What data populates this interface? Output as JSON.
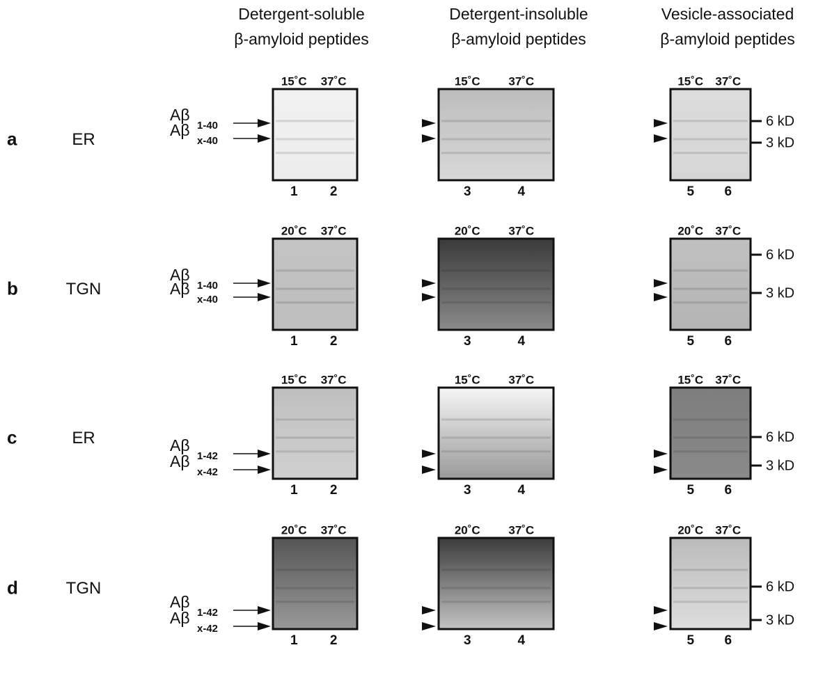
{
  "columns": [
    {
      "line1": "Detergent-soluble",
      "line2": "β-amyloid peptides"
    },
    {
      "line1": "Detergent-insoluble",
      "line2": "β-amyloid peptides"
    },
    {
      "line1": "Vesicle-associated",
      "line2": "β-amyloid peptides"
    }
  ],
  "rows": [
    {
      "letter": "a",
      "compartment": "ER",
      "peptides": [
        {
          "base": "Aβ",
          "sub": "1-40"
        },
        {
          "base": "Aβ",
          "sub": "x-40"
        }
      ],
      "panels": [
        {
          "temps": [
            "15˚C",
            "37˚C"
          ],
          "lanes": [
            "1",
            "2"
          ]
        },
        {
          "temps": [
            "15˚C",
            "37˚C"
          ],
          "lanes": [
            "3",
            "4"
          ]
        },
        {
          "temps": [
            "15˚C",
            "37˚C"
          ],
          "lanes": [
            "5",
            "6"
          ]
        }
      ],
      "markers": [
        "6 kD",
        "3 kD"
      ]
    },
    {
      "letter": "b",
      "compartment": "TGN",
      "peptides": [
        {
          "base": "Aβ",
          "sub": "1-40"
        },
        {
          "base": "Aβ",
          "sub": "x-40"
        }
      ],
      "panels": [
        {
          "temps": [
            "20˚C",
            "37˚C"
          ],
          "lanes": [
            "1",
            "2"
          ]
        },
        {
          "temps": [
            "20˚C",
            "37˚C"
          ],
          "lanes": [
            "3",
            "4"
          ]
        },
        {
          "temps": [
            "20˚C",
            "37˚C"
          ],
          "lanes": [
            "5",
            "6"
          ]
        }
      ],
      "markers": [
        "6 kD",
        "3 kD"
      ]
    },
    {
      "letter": "c",
      "compartment": "ER",
      "peptides": [
        {
          "base": "Aβ",
          "sub": "1-42"
        },
        {
          "base": "Aβ",
          "sub": "x-42"
        }
      ],
      "panels": [
        {
          "temps": [
            "15˚C",
            "37˚C"
          ],
          "lanes": [
            "1",
            "2"
          ]
        },
        {
          "temps": [
            "15˚C",
            "37˚C"
          ],
          "lanes": [
            "3",
            "4"
          ]
        },
        {
          "temps": [
            "15˚C",
            "37˚C"
          ],
          "lanes": [
            "5",
            "6"
          ]
        }
      ],
      "markers": [
        "6 kD",
        "3 kD"
      ]
    },
    {
      "letter": "d",
      "compartment": "TGN",
      "peptides": [
        {
          "base": "Aβ",
          "sub": "1-42"
        },
        {
          "base": "Aβ",
          "sub": "x-42"
        }
      ],
      "panels": [
        {
          "temps": [
            "20˚C",
            "37˚C"
          ],
          "lanes": [
            "1",
            "2"
          ]
        },
        {
          "temps": [
            "20˚C",
            "37˚C"
          ],
          "lanes": [
            "3",
            "4"
          ]
        },
        {
          "temps": [
            "20˚C",
            "37˚C"
          ],
          "lanes": [
            "5",
            "6"
          ]
        }
      ],
      "markers": [
        "6 kD",
        "3 kD"
      ]
    }
  ]
}
